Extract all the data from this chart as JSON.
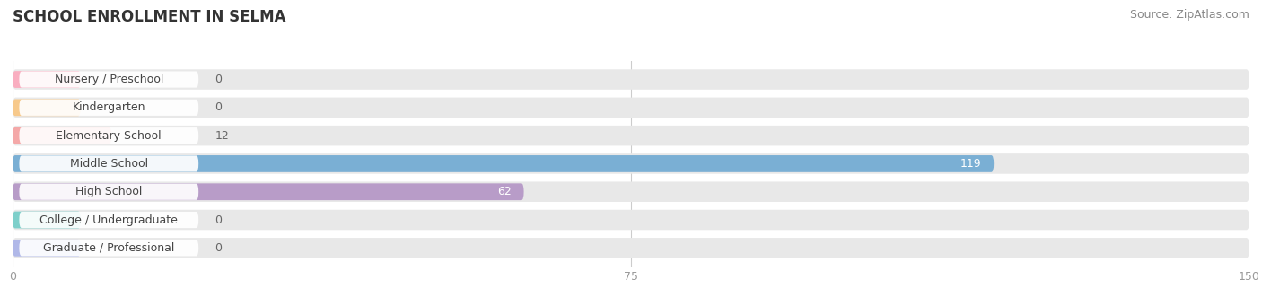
{
  "title": "SCHOOL ENROLLMENT IN SELMA",
  "source": "Source: ZipAtlas.com",
  "categories": [
    "Nursery / Preschool",
    "Kindergarten",
    "Elementary School",
    "Middle School",
    "High School",
    "College / Undergraduate",
    "Graduate / Professional"
  ],
  "values": [
    0,
    0,
    12,
    119,
    62,
    0,
    0
  ],
  "bar_colors": [
    "#f9aec0",
    "#f7c98b",
    "#f4a8a8",
    "#7aafd4",
    "#b89cc8",
    "#7ecfca",
    "#b0b8e8"
  ],
  "page_bg_color": "#ffffff",
  "bar_bg_color": "#e8e8e8",
  "xlim": [
    0,
    150
  ],
  "xticks": [
    0,
    75,
    150
  ],
  "title_fontsize": 12,
  "source_fontsize": 9,
  "label_fontsize": 9,
  "value_color_inside": "#ffffff",
  "value_color_outside": "#666666",
  "label_bg_color": "#ffffff",
  "label_text_color": "#444444",
  "grid_color": "#cccccc",
  "tick_color": "#999999"
}
